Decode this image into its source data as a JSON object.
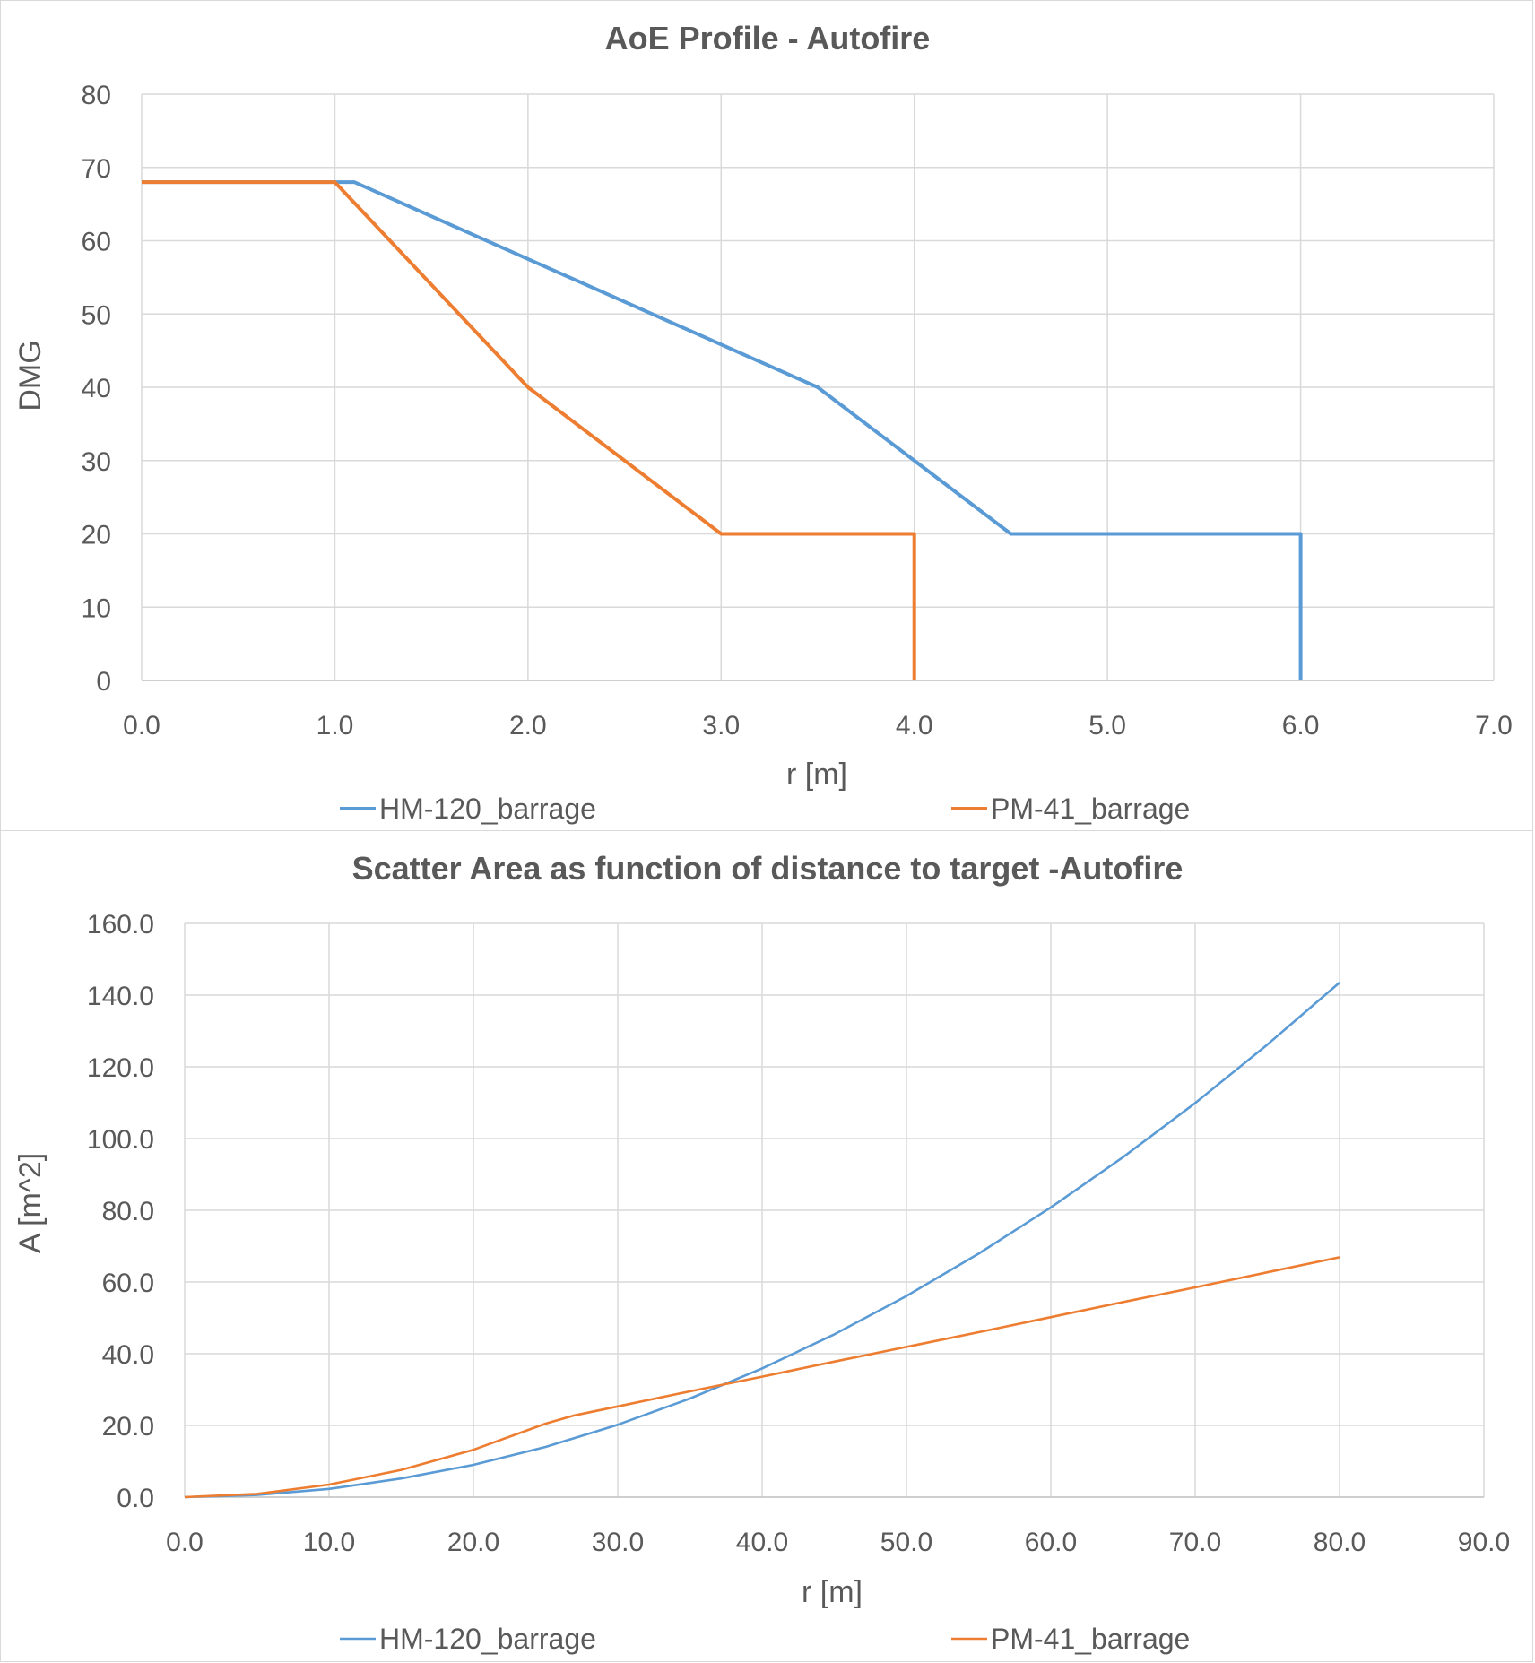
{
  "chart_data": [
    {
      "type": "line",
      "title": "AoE Profile - Autofire",
      "xlabel": "r [m]",
      "ylabel": "DMG",
      "xlim": [
        0,
        7
      ],
      "ylim": [
        0,
        80
      ],
      "xticks": [
        "0.0",
        "1.0",
        "2.0",
        "3.0",
        "4.0",
        "5.0",
        "6.0",
        "7.0"
      ],
      "yticks": [
        "0",
        "10",
        "20",
        "30",
        "40",
        "50",
        "60",
        "70",
        "80"
      ],
      "grid": true,
      "legend": "bottom",
      "series": [
        {
          "name": "HM-120_barrage",
          "color": "#5b9bd5",
          "x": [
            0,
            1.1,
            2.0,
            3.5,
            4.5,
            6.0,
            6.0
          ],
          "y": [
            68,
            68,
            57.5,
            40,
            20,
            20,
            0
          ]
        },
        {
          "name": "PM-41_barrage",
          "color": "#ed7d31",
          "x": [
            0,
            1.0,
            2.0,
            3.0,
            4.0,
            4.0
          ],
          "y": [
            68,
            68,
            40,
            20,
            20,
            0
          ]
        }
      ]
    },
    {
      "type": "line",
      "title": "Scatter Area as function of distance to target -Autofire",
      "xlabel": "r [m]",
      "ylabel": "A [m^2]",
      "xlim": [
        0,
        90
      ],
      "ylim": [
        0,
        160
      ],
      "xticks": [
        "0.0",
        "10.0",
        "20.0",
        "30.0",
        "40.0",
        "50.0",
        "60.0",
        "70.0",
        "80.0",
        "90.0"
      ],
      "yticks": [
        "0.0",
        "20.0",
        "40.0",
        "60.0",
        "80.0",
        "100.0",
        "120.0",
        "140.0",
        "160.0"
      ],
      "grid": true,
      "legend": "bottom",
      "series": [
        {
          "name": "HM-120_barrage",
          "color": "#5b9bd5",
          "x": [
            0,
            5,
            10,
            15,
            20,
            25,
            30,
            35,
            40,
            45,
            50,
            55,
            60,
            65,
            70,
            75,
            80
          ],
          "y": [
            0,
            0.6,
            2.3,
            5.2,
            9.0,
            14.0,
            20.2,
            27.5,
            35.9,
            45.4,
            56.1,
            67.9,
            80.8,
            94.8,
            109.9,
            126.2,
            143.5
          ]
        },
        {
          "name": "PM-41_barrage",
          "color": "#ed7d31",
          "x": [
            0,
            5,
            10,
            15,
            20,
            25,
            27,
            30,
            35,
            40,
            45,
            50,
            55,
            60,
            65,
            70,
            75,
            80
          ],
          "y": [
            0,
            0.9,
            3.5,
            7.6,
            13.2,
            20.5,
            22.8,
            25.3,
            29.5,
            33.6,
            37.8,
            41.9,
            46.0,
            50.2,
            54.4,
            58.5,
            62.7,
            66.9
          ]
        }
      ]
    }
  ]
}
